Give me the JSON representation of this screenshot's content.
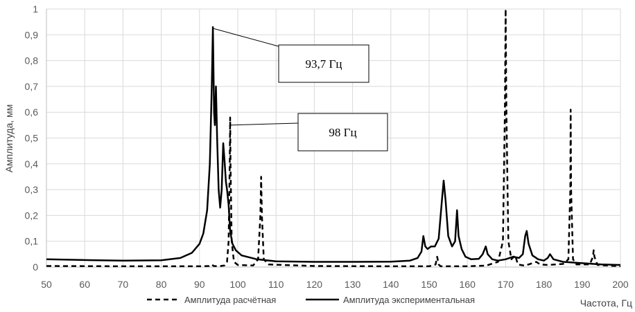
{
  "chart_data": {
    "type": "line",
    "title": "",
    "xlabel": "Частота, Гц",
    "ylabel": "Амплитуда, мм",
    "xlim": [
      50,
      200
    ],
    "ylim": [
      0,
      1
    ],
    "x_ticks": [
      "50",
      "60",
      "70",
      "80",
      "90",
      "100",
      "110",
      "120",
      "130",
      "140",
      "150",
      "160",
      "170",
      "180",
      "190",
      "200"
    ],
    "y_ticks": [
      "0",
      "0,1",
      "0,2",
      "0,3",
      "0,4",
      "0,5",
      "0,6",
      "0,7",
      "0,8",
      "0,9",
      "1"
    ],
    "grid": true,
    "legend_position": "bottom",
    "series": [
      {
        "name": "Амплитуда расчётная",
        "style": "dashed",
        "color": "#000000",
        "points": [
          [
            50,
            0.004
          ],
          [
            70,
            0.003
          ],
          [
            90,
            0.003
          ],
          [
            92.5,
            0.004
          ],
          [
            93.2,
            0.01
          ],
          [
            93.7,
            0.004
          ],
          [
            95,
            0.003
          ],
          [
            96.5,
            0.006
          ],
          [
            97.2,
            0.02
          ],
          [
            97.6,
            0.1
          ],
          [
            97.9,
            0.4
          ],
          [
            98.0,
            0.58
          ],
          [
            98.1,
            0.4
          ],
          [
            98.4,
            0.1
          ],
          [
            99,
            0.02
          ],
          [
            100,
            0.008
          ],
          [
            104,
            0.006
          ],
          [
            105.3,
            0.03
          ],
          [
            105.9,
            0.2
          ],
          [
            106.1,
            0.35
          ],
          [
            106.3,
            0.2
          ],
          [
            106.8,
            0.03
          ],
          [
            108,
            0.01
          ],
          [
            120,
            0.004
          ],
          [
            140,
            0.003
          ],
          [
            150,
            0.003
          ],
          [
            151.7,
            0.01
          ],
          [
            152.1,
            0.04
          ],
          [
            152.5,
            0.01
          ],
          [
            153,
            0.003
          ],
          [
            160,
            0.003
          ],
          [
            165,
            0.006
          ],
          [
            168,
            0.02
          ],
          [
            169.3,
            0.1
          ],
          [
            169.8,
            0.6
          ],
          [
            170.0,
            1.0
          ],
          [
            170.2,
            0.6
          ],
          [
            170.7,
            0.1
          ],
          [
            171.5,
            0.03
          ],
          [
            172.5,
            0.045
          ],
          [
            173.2,
            0.01
          ],
          [
            175,
            0.005
          ],
          [
            178,
            0.02
          ],
          [
            179,
            0.01
          ],
          [
            181,
            0.008
          ],
          [
            185,
            0.012
          ],
          [
            186.4,
            0.03
          ],
          [
            186.9,
            0.3
          ],
          [
            187.0,
            0.61
          ],
          [
            187.1,
            0.3
          ],
          [
            187.6,
            0.03
          ],
          [
            188.5,
            0.01
          ],
          [
            192,
            0.01
          ],
          [
            192.8,
            0.04
          ],
          [
            193.0,
            0.065
          ],
          [
            193.2,
            0.04
          ],
          [
            194,
            0.008
          ],
          [
            200,
            0.003
          ]
        ]
      },
      {
        "name": "Амплитуда экспериментальная",
        "style": "solid",
        "color": "#000000",
        "points": [
          [
            50,
            0.03
          ],
          [
            60,
            0.027
          ],
          [
            70,
            0.025
          ],
          [
            80,
            0.026
          ],
          [
            85,
            0.035
          ],
          [
            88,
            0.055
          ],
          [
            90,
            0.09
          ],
          [
            91,
            0.13
          ],
          [
            92,
            0.22
          ],
          [
            92.7,
            0.4
          ],
          [
            93.2,
            0.7
          ],
          [
            93.5,
            0.93
          ],
          [
            93.8,
            0.6
          ],
          [
            94.0,
            0.55
          ],
          [
            94.3,
            0.7
          ],
          [
            94.6,
            0.5
          ],
          [
            95,
            0.3
          ],
          [
            95.4,
            0.23
          ],
          [
            95.8,
            0.3
          ],
          [
            96.2,
            0.48
          ],
          [
            96.5,
            0.42
          ],
          [
            96.9,
            0.33
          ],
          [
            97.2,
            0.3
          ],
          [
            97.6,
            0.24
          ],
          [
            98,
            0.14
          ],
          [
            98.6,
            0.09
          ],
          [
            99.5,
            0.065
          ],
          [
            101,
            0.045
          ],
          [
            105,
            0.03
          ],
          [
            110,
            0.022
          ],
          [
            120,
            0.02
          ],
          [
            130,
            0.02
          ],
          [
            140,
            0.021
          ],
          [
            145,
            0.025
          ],
          [
            147,
            0.035
          ],
          [
            148,
            0.06
          ],
          [
            148.5,
            0.12
          ],
          [
            149,
            0.08
          ],
          [
            149.6,
            0.07
          ],
          [
            150.5,
            0.08
          ],
          [
            151.5,
            0.08
          ],
          [
            152.5,
            0.11
          ],
          [
            153.3,
            0.25
          ],
          [
            153.8,
            0.335
          ],
          [
            154.3,
            0.26
          ],
          [
            155,
            0.12
          ],
          [
            156,
            0.08
          ],
          [
            156.8,
            0.1
          ],
          [
            157.3,
            0.22
          ],
          [
            157.7,
            0.12
          ],
          [
            158.5,
            0.07
          ],
          [
            159.5,
            0.04
          ],
          [
            161,
            0.03
          ],
          [
            163,
            0.032
          ],
          [
            164,
            0.05
          ],
          [
            164.8,
            0.08
          ],
          [
            165.3,
            0.05
          ],
          [
            166.5,
            0.03
          ],
          [
            168,
            0.025
          ],
          [
            170,
            0.03
          ],
          [
            172,
            0.04
          ],
          [
            173.5,
            0.035
          ],
          [
            174.5,
            0.05
          ],
          [
            175.1,
            0.12
          ],
          [
            175.5,
            0.14
          ],
          [
            176,
            0.09
          ],
          [
            177,
            0.045
          ],
          [
            178.5,
            0.03
          ],
          [
            180,
            0.025
          ],
          [
            181,
            0.035
          ],
          [
            181.6,
            0.05
          ],
          [
            182.5,
            0.03
          ],
          [
            185,
            0.02
          ],
          [
            190,
            0.015
          ],
          [
            195,
            0.01
          ],
          [
            200,
            0.008
          ]
        ]
      }
    ],
    "annotations": [
      {
        "text": "93,7 Гц",
        "target": [
          93.5,
          0.925
        ]
      },
      {
        "text": "98 Гц",
        "target": [
          98.0,
          0.55
        ]
      }
    ]
  }
}
